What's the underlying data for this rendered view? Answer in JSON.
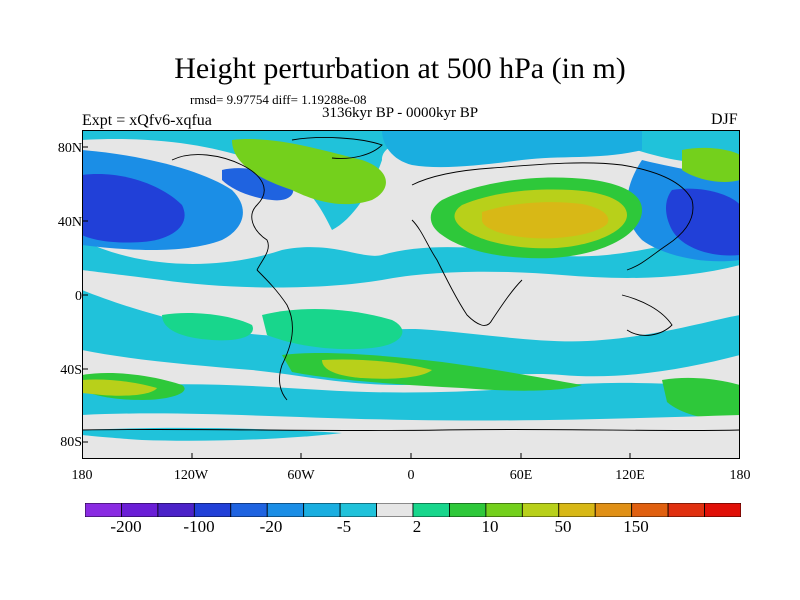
{
  "title": "Height perturbation at 500 hPa (in m)",
  "stats": "rmsd= 9.97754 diff= 1.19288e-08",
  "period": "3136kyr BP - 0000kyr BP",
  "experiment": "Expt = xQfv6-xqfua",
  "season": "DJF",
  "lat_ticks": [
    "80N",
    "40N",
    "0",
    "40S",
    "80S"
  ],
  "lon_ticks": [
    "180",
    "120W",
    "60W",
    "0",
    "60E",
    "120E",
    "180"
  ],
  "colorbar": {
    "colors": [
      "#8a2be2",
      "#6a1ed6",
      "#4b22c8",
      "#2140d8",
      "#1f63e0",
      "#1b8ee6",
      "#1aaee0",
      "#20c2da",
      "#e6e6e6",
      "#18d68c",
      "#2ec83a",
      "#74d01c",
      "#b8d01a",
      "#d8b816",
      "#e09016",
      "#e06010",
      "#e03010",
      "#e01008"
    ],
    "labels": [
      "-200",
      "-100",
      "-20",
      "-5",
      "2",
      "10",
      "50",
      "150"
    ]
  }
}
